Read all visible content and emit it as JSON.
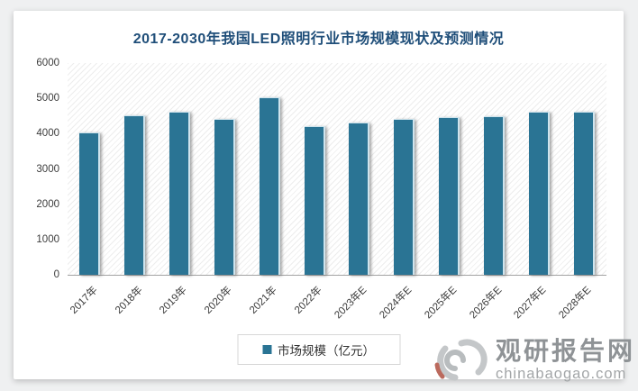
{
  "page": {
    "title": "2017-2030年我国LED照明行业市场规模现状及预测情况"
  },
  "legend": {
    "label": "市场规模（亿元）"
  },
  "watermark": {
    "site_name": "观研报告网",
    "site_url": "chinabaogao.com"
  },
  "colors": {
    "bar": "#2a7494",
    "bar_edge": "#cfe4ed",
    "title": "#1f4e79",
    "axis_line": "#a3a3a3",
    "tick_text": "#3c3c3c",
    "watermark_gray": "#8f9396"
  },
  "chart_data": {
    "type": "bar",
    "title": "2017-2030年我国LED照明行业市场规模现状及预测情况",
    "categories": [
      "2017年",
      "2018年",
      "2019年",
      "2020年",
      "2021年",
      "2022年",
      "2023年E",
      "2024年E",
      "2025年E",
      "2026年E",
      "2027年E",
      "2028年E"
    ],
    "values": [
      4000,
      4500,
      4600,
      4400,
      5000,
      4200,
      4300,
      4400,
      4450,
      4480,
      4600,
      4600
    ],
    "series_name": "市场规模（亿元）",
    "xlabel": "",
    "ylabel": "",
    "ylim": [
      0,
      6000
    ],
    "yticks": [
      0,
      1000,
      2000,
      3000,
      4000,
      5000,
      6000
    ],
    "grid": false,
    "legend_position": "bottom",
    "plot_background": "diagonal-hatch"
  }
}
